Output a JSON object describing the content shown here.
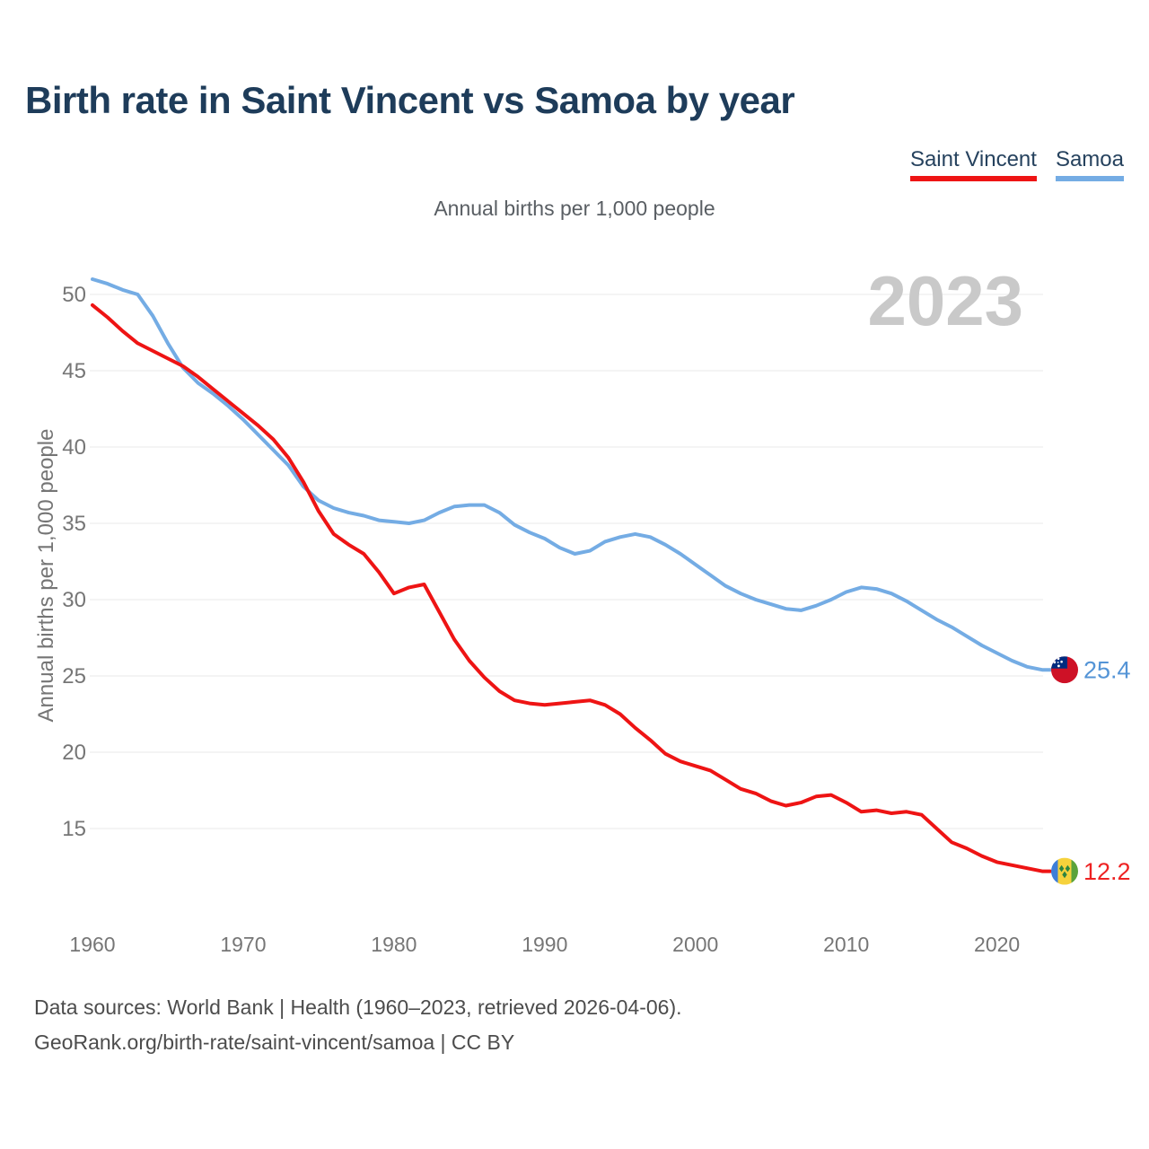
{
  "page": {
    "title": "Birth rate in Saint Vincent vs Samoa by year",
    "subtitle": "Annual births per 1,000 people",
    "ylabel": "Annual births per 1,000 people",
    "watermark": "2023",
    "footer_line1": "Data sources: World Bank | Health (1960–2023, retrieved 2026-04-06).",
    "footer_line2": "GeoRank.org/birth-rate/saint-vincent/samoa | CC BY"
  },
  "legend": {
    "items": [
      {
        "label": "Saint Vincent",
        "color": "#ee1414"
      },
      {
        "label": "Samoa",
        "color": "#74ace4"
      }
    ]
  },
  "chart_data": {
    "type": "line",
    "title": "Birth rate in Saint Vincent vs Samoa by year",
    "subtitle": "Annual births per 1,000 people",
    "xlabel": "",
    "ylabel": "Annual births per 1,000 people",
    "watermark": "2023",
    "grid": true,
    "legend_position": "top-right",
    "ylim": [
      10,
      52
    ],
    "yticks": [
      15,
      20,
      25,
      30,
      35,
      40,
      45,
      50
    ],
    "xticks": [
      1960,
      1970,
      1980,
      1990,
      2000,
      2010,
      2020
    ],
    "x": [
      1960,
      1961,
      1962,
      1963,
      1964,
      1965,
      1966,
      1967,
      1968,
      1969,
      1970,
      1971,
      1972,
      1973,
      1974,
      1975,
      1976,
      1977,
      1978,
      1979,
      1980,
      1981,
      1982,
      1983,
      1984,
      1985,
      1986,
      1987,
      1988,
      1989,
      1990,
      1991,
      1992,
      1993,
      1994,
      1995,
      1996,
      1997,
      1998,
      1999,
      2000,
      2001,
      2002,
      2003,
      2004,
      2005,
      2006,
      2007,
      2008,
      2009,
      2010,
      2011,
      2012,
      2013,
      2014,
      2015,
      2016,
      2017,
      2018,
      2019,
      2020,
      2021,
      2022,
      2023
    ],
    "series": [
      {
        "id": "saint-vincent",
        "name": "Saint Vincent",
        "color": "#ee1414",
        "label_color": "#ee2222",
        "flag": "saint-vincent",
        "end_label": "12.2",
        "values": [
          49.3,
          48.5,
          47.6,
          46.8,
          46.3,
          45.8,
          45.3,
          44.6,
          43.8,
          43.0,
          42.2,
          41.4,
          40.5,
          39.3,
          37.7,
          35.8,
          34.3,
          33.6,
          33.0,
          31.8,
          30.4,
          30.8,
          31.0,
          29.2,
          27.4,
          26.0,
          24.9,
          24.0,
          23.4,
          23.2,
          23.1,
          23.2,
          23.3,
          23.4,
          23.1,
          22.5,
          21.6,
          20.8,
          19.9,
          19.4,
          19.1,
          18.8,
          18.2,
          17.6,
          17.3,
          16.8,
          16.5,
          16.7,
          17.1,
          17.2,
          16.7,
          16.1,
          16.2,
          16.0,
          16.1,
          15.9,
          15.0,
          14.1,
          13.7,
          13.2,
          12.8,
          12.6,
          12.4,
          12.2
        ]
      },
      {
        "id": "samoa",
        "name": "Samoa",
        "color": "#74ace4",
        "label_color": "#5494d6",
        "flag": "samoa",
        "end_label": "25.4",
        "values": [
          51.0,
          50.7,
          50.3,
          50.0,
          48.6,
          46.8,
          45.2,
          44.2,
          43.5,
          42.7,
          41.8,
          40.8,
          39.8,
          38.8,
          37.4,
          36.5,
          36.0,
          35.7,
          35.5,
          35.2,
          35.1,
          35.0,
          35.2,
          35.7,
          36.1,
          36.2,
          36.2,
          35.7,
          34.9,
          34.4,
          34.0,
          33.4,
          33.0,
          33.2,
          33.8,
          34.1,
          34.3,
          34.1,
          33.6,
          33.0,
          32.3,
          31.6,
          30.9,
          30.4,
          30.0,
          29.7,
          29.4,
          29.3,
          29.6,
          30.0,
          30.5,
          30.8,
          30.7,
          30.4,
          29.9,
          29.3,
          28.7,
          28.2,
          27.6,
          27.0,
          26.5,
          26.0,
          25.6,
          25.4
        ]
      }
    ]
  }
}
